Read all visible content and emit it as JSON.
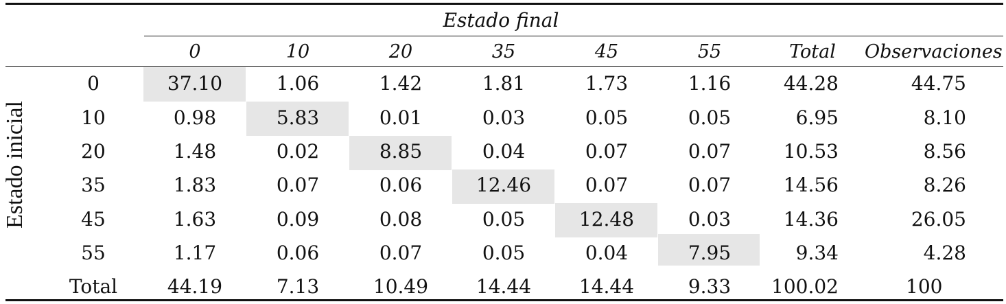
{
  "table": {
    "col_group_label": "Estado final",
    "row_group_label": "Estado inicial",
    "columns": [
      "0",
      "10",
      "20",
      "35",
      "45",
      "55",
      "Total",
      "Observaciones"
    ],
    "rows": [
      {
        "label": "0",
        "values": [
          "37.10",
          "1.06",
          "1.42",
          "1.81",
          "1.73",
          "1.16",
          "44.28",
          "44.75"
        ]
      },
      {
        "label": "10",
        "values": [
          "0.98",
          "5.83",
          "0.01",
          "0.03",
          "0.05",
          "0.05",
          "6.95",
          "8.10"
        ]
      },
      {
        "label": "20",
        "values": [
          "1.48",
          "0.02",
          "8.85",
          "0.04",
          "0.07",
          "0.07",
          "10.53",
          "8.56"
        ]
      },
      {
        "label": "35",
        "values": [
          "1.83",
          "0.07",
          "0.06",
          "12.46",
          "0.07",
          "0.07",
          "14.56",
          "8.26"
        ]
      },
      {
        "label": "45",
        "values": [
          "1.63",
          "0.09",
          "0.08",
          "0.05",
          "12.48",
          "0.03",
          "14.36",
          "26.05"
        ]
      },
      {
        "label": "55",
        "values": [
          "1.17",
          "0.06",
          "0.07",
          "0.05",
          "0.04",
          "7.95",
          "9.34",
          "4.28"
        ]
      },
      {
        "label": "Total",
        "values": [
          "44.19",
          "7.13",
          "10.49",
          "14.44",
          "14.44",
          "9.33",
          "100.02",
          "100"
        ]
      }
    ],
    "highlight_color": "#e6e6e6"
  }
}
